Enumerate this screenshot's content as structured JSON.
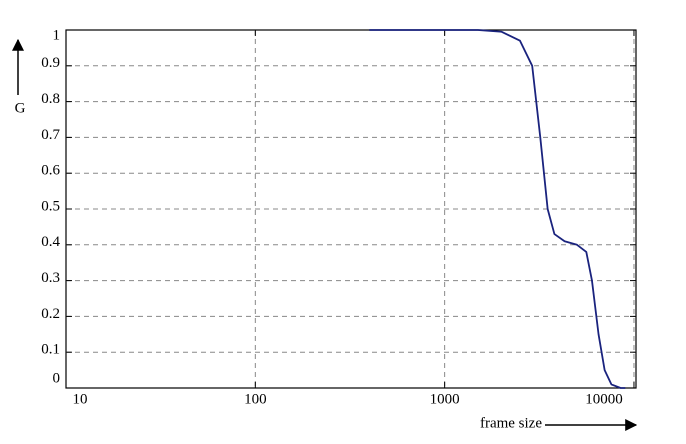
{
  "chart_data": {
    "type": "line",
    "xlabel": "frame size",
    "ylabel": "G",
    "xscale": "log",
    "xlim": [
      10,
      10250
    ],
    "xticks": [
      10,
      100,
      1000,
      10000
    ],
    "ylim": [
      0,
      1
    ],
    "yticks": [
      0,
      0.1,
      0.2,
      0.3,
      0.4,
      0.5,
      0.6,
      0.7,
      0.8,
      0.9,
      1
    ],
    "grid": true,
    "series": [
      {
        "color": "#1a237e",
        "x": [
          400,
          1000,
          1500,
          2000,
          2500,
          2900,
          3200,
          3500,
          3800,
          4300,
          5000,
          5600,
          6000,
          6500,
          7000,
          7600,
          8500,
          9000
        ],
        "values": [
          1,
          1,
          1,
          0.995,
          0.97,
          0.9,
          0.7,
          0.5,
          0.43,
          0.41,
          0.4,
          0.38,
          0.3,
          0.15,
          0.05,
          0.01,
          0,
          0
        ]
      }
    ]
  }
}
